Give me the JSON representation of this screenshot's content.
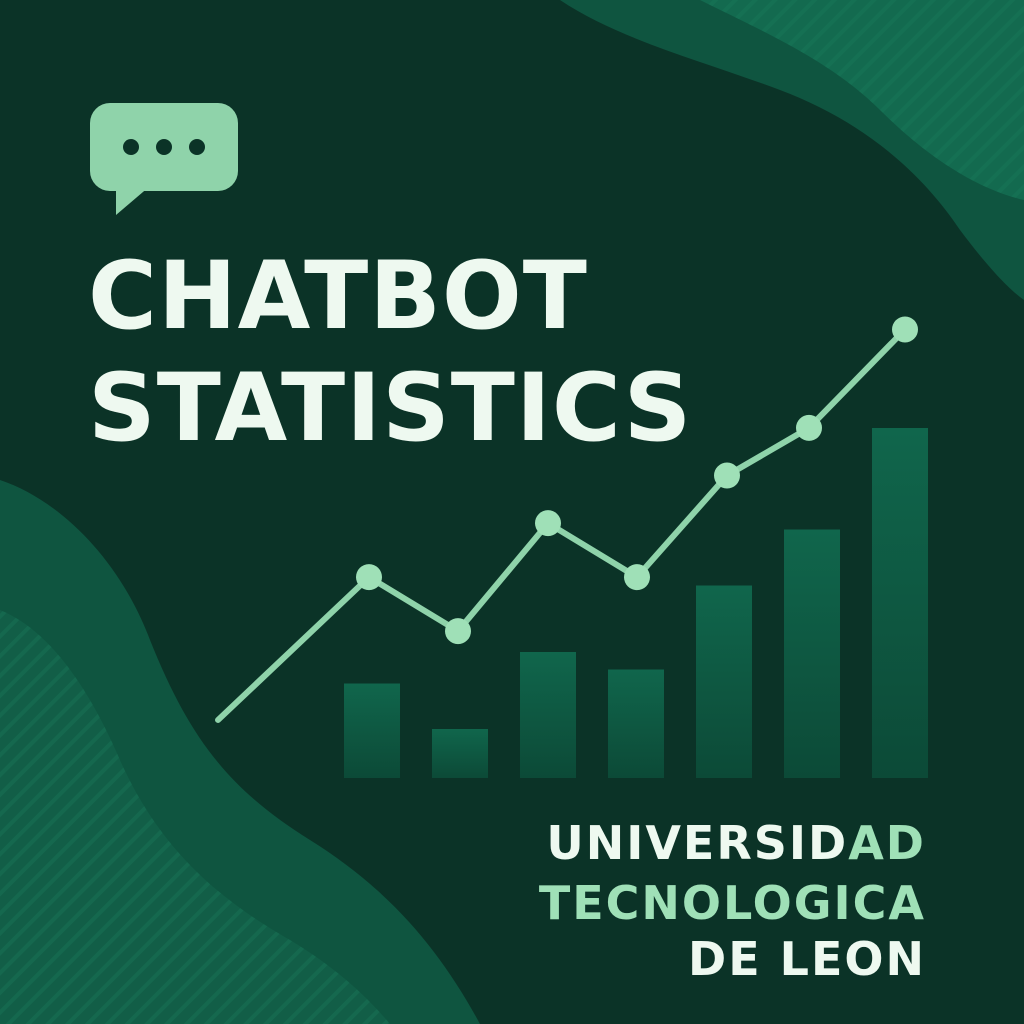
{
  "title": {
    "line1": "CHATBOT",
    "line2": "STATISTICS"
  },
  "institution": {
    "line1_main": "UNIVERSID",
    "line1_accent": "AD",
    "line2": "TECNOLOGICA",
    "line3": "DE LEON"
  },
  "icon": {
    "name": "chat-bubble-icon",
    "glyph": "•••"
  },
  "colors": {
    "background": "#0b3327",
    "wave": "#0f5c44",
    "accent": "#9fe0b7",
    "text": "#eef9f0",
    "bar": "#10624a"
  },
  "chart_data": {
    "type": "bar",
    "title": "",
    "xlabel": "",
    "ylabel": "",
    "ylim": [
      0,
      100
    ],
    "bar_values": [
      27,
      14,
      36,
      31,
      55,
      71,
      100
    ],
    "line_values": [
      0,
      45,
      28,
      62,
      45,
      77,
      92,
      123
    ]
  }
}
